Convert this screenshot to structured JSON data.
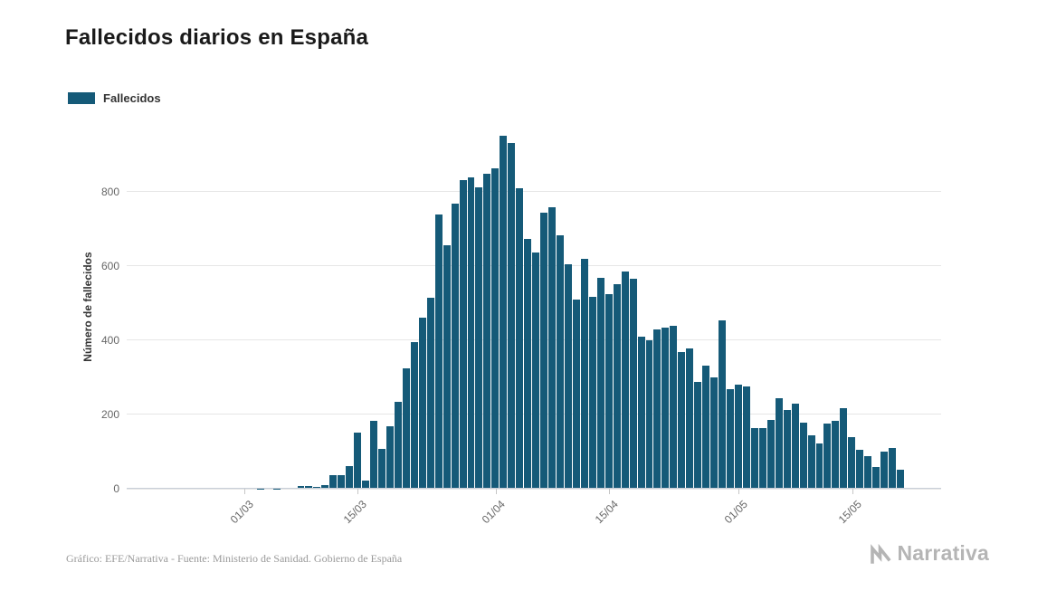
{
  "header": {
    "title": "Fallecidos diarios en España"
  },
  "legend": {
    "label": "Fallecidos"
  },
  "footer": {
    "credit": "Gráfico: EFE/Narrativa - Fuente: Ministerio de Sanidad. Gobierno de España",
    "brand": "Narrativa"
  },
  "chart_data": {
    "type": "bar",
    "title": "Fallecidos diarios en España",
    "series_name": "Fallecidos",
    "xlabel": "",
    "ylabel": "Número de fallecidos",
    "ylim": [
      0,
      980
    ],
    "yticks": [
      0,
      200,
      400,
      600,
      800
    ],
    "xticks": [
      "01/03",
      "15/03",
      "01/04",
      "15/04",
      "01/05",
      "15/05"
    ],
    "grid": true,
    "legend_position": "top-left",
    "bar_color": "#155a78",
    "categories": [
      "16/02",
      "17/02",
      "18/02",
      "19/02",
      "20/02",
      "21/02",
      "22/02",
      "23/02",
      "24/02",
      "25/02",
      "26/02",
      "27/02",
      "28/02",
      "29/02",
      "01/03",
      "02/03",
      "03/03",
      "04/03",
      "05/03",
      "06/03",
      "07/03",
      "08/03",
      "09/03",
      "10/03",
      "11/03",
      "12/03",
      "13/03",
      "14/03",
      "15/03",
      "16/03",
      "17/03",
      "18/03",
      "19/03",
      "20/03",
      "21/03",
      "22/03",
      "23/03",
      "24/03",
      "25/03",
      "26/03",
      "27/03",
      "28/03",
      "29/03",
      "30/03",
      "31/03",
      "01/04",
      "02/04",
      "03/04",
      "04/04",
      "05/04",
      "06/04",
      "07/04",
      "08/04",
      "09/04",
      "10/04",
      "11/04",
      "12/04",
      "13/04",
      "14/04",
      "15/04",
      "16/04",
      "17/04",
      "18/04",
      "19/04",
      "20/04",
      "21/04",
      "22/04",
      "23/04",
      "24/04",
      "25/04",
      "26/04",
      "27/04",
      "28/04",
      "29/04",
      "30/04",
      "01/05",
      "02/05",
      "03/05",
      "04/05",
      "05/05",
      "06/05",
      "07/05",
      "08/05",
      "09/05",
      "10/05",
      "11/05",
      "12/05",
      "13/05",
      "14/05",
      "15/05",
      "16/05",
      "17/05",
      "18/05",
      "19/05",
      "20/05",
      "21/05"
    ],
    "values": [
      0,
      0,
      0,
      0,
      0,
      0,
      0,
      0,
      0,
      0,
      0,
      0,
      0,
      0,
      0,
      0,
      1,
      2,
      1,
      2,
      2,
      7,
      8,
      6,
      11,
      37,
      36,
      62,
      152,
      21,
      182,
      107,
      169,
      235,
      324,
      394,
      462,
      514,
      738,
      655,
      769,
      832,
      838,
      812,
      849,
      864,
      950,
      932,
      809,
      674,
      637,
      743,
      757,
      683,
      605,
      510,
      619,
      517,
      567,
      523,
      551,
      585,
      565,
      410,
      399,
      430,
      435,
      440,
      367,
      378,
      288,
      331,
      301,
      453,
      268,
      281,
      276,
      164,
      164,
      185,
      244,
      213,
      229,
      179,
      143,
      123,
      176,
      184,
      217,
      138,
      104,
      87,
      59,
      100,
      110,
      52
    ]
  }
}
